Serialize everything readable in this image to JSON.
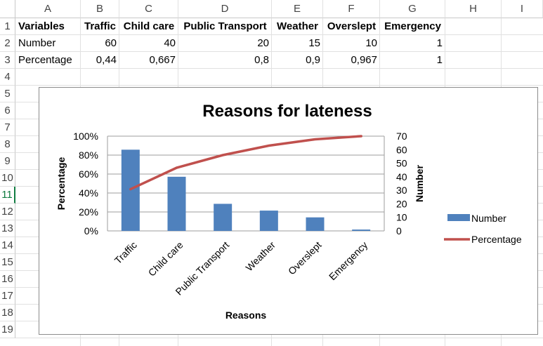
{
  "spreadsheet": {
    "columns": [
      "A",
      "B",
      "C",
      "D",
      "E",
      "F",
      "G",
      "H",
      "I"
    ],
    "rows": [
      "1",
      "2",
      "3",
      "4",
      "5",
      "6",
      "7",
      "8",
      "9",
      "10",
      "11",
      "12",
      "13",
      "14",
      "15",
      "16",
      "17",
      "18",
      "19"
    ],
    "selected_row": "11",
    "cells": {
      "r1": [
        "Variables",
        "Traffic",
        "Child care",
        "Public Transport",
        "Weather",
        "Overslept",
        "Emergency"
      ],
      "r2": [
        "Number",
        "60",
        "40",
        "20",
        "15",
        "10",
        "1"
      ],
      "r3": [
        "Percentage",
        "0,44",
        "0,667",
        "0,8",
        "0,9",
        "0,967",
        "1"
      ]
    }
  },
  "chart_data": {
    "type": "bar+line",
    "title": "Reasons for lateness",
    "xlabel": "Reasons",
    "ylabel_left": "Percentage",
    "ylabel_right": "Number",
    "categories": [
      "Traffic",
      "Child care",
      "Public Transport",
      "Weather",
      "Overslept",
      "Emergency"
    ],
    "series": [
      {
        "name": "Number",
        "type": "bar",
        "axis": "right",
        "values": [
          60,
          40,
          20,
          15,
          10,
          1
        ],
        "color": "#4f81bd"
      },
      {
        "name": "Percentage",
        "type": "line",
        "axis": "left",
        "values": [
          0.44,
          0.667,
          0.8,
          0.9,
          0.967,
          1
        ],
        "color": "#c0504d"
      }
    ],
    "left_axis": {
      "ticks": [
        "0%",
        "20%",
        "40%",
        "60%",
        "80%",
        "100%"
      ],
      "ylim": [
        0,
        1
      ]
    },
    "right_axis": {
      "ticks": [
        "0",
        "10",
        "20",
        "30",
        "40",
        "50",
        "60",
        "70"
      ],
      "ylim": [
        0,
        70
      ]
    },
    "legend_placement": "right",
    "grid": true
  }
}
